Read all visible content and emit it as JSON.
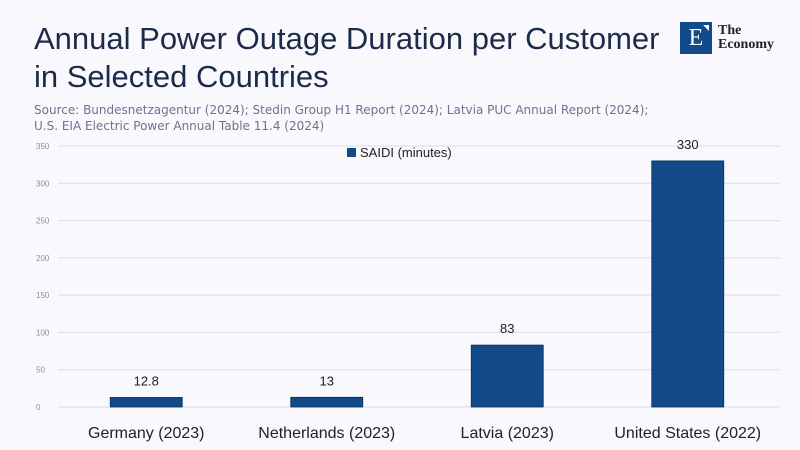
{
  "header": {
    "title_line1": "Annual Power Outage Duration per Customer",
    "title_line2": "in Selected Countries",
    "source": "Source: Bundesnetzagentur (2024); Stedin Group H1 Report (2024); Latvia PUC Annual Report (2024); U.S. EIA Electric Power Annual Table 11.4 (2024)",
    "logo_letter": "E",
    "logo_line1": "The",
    "logo_line2": "Economy"
  },
  "chart_data": {
    "type": "bar",
    "title": "Annual Power Outage Duration per Customer in Selected Countries",
    "categories": [
      "Germany (2023)",
      "Netherlands (2023)",
      "Latvia (2023)",
      "United States (2022)"
    ],
    "series": [
      {
        "name": "SAIDI (minutes)",
        "values": [
          12.8,
          13,
          83,
          330
        ],
        "labels": [
          "12.8",
          "13",
          "83",
          "330"
        ]
      }
    ],
    "ylim": [
      0,
      350
    ],
    "yticks": [
      0,
      50,
      100,
      150,
      200,
      250,
      300,
      350
    ],
    "grid": true,
    "legend": "top-center",
    "xlabel": "",
    "ylabel": "",
    "colors": {
      "bar": "#124a8a",
      "grid": "#dcdde3"
    }
  }
}
